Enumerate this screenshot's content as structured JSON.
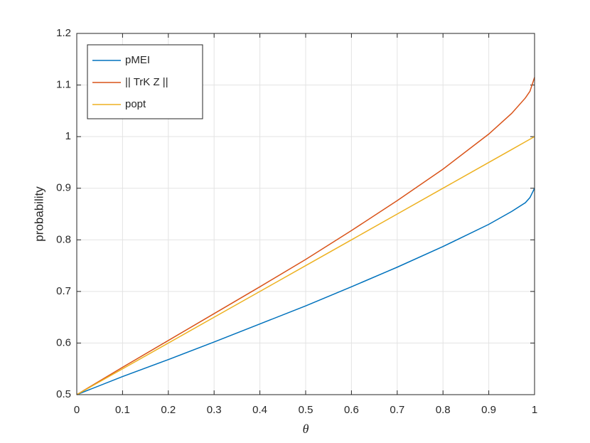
{
  "chart_data": {
    "type": "line",
    "x_label": "θ",
    "y_label": "probability",
    "x": [
      0,
      0.1,
      0.2,
      0.3,
      0.4,
      0.5,
      0.6,
      0.7,
      0.8,
      0.9,
      0.95,
      0.98,
      0.99,
      1
    ],
    "series": [
      {
        "name": "pMEI",
        "color": "#0072BD",
        "values": [
          0.5,
          0.535,
          0.568,
          0.602,
          0.637,
          0.672,
          0.709,
          0.747,
          0.787,
          0.83,
          0.855,
          0.872,
          0.882,
          0.9
        ]
      },
      {
        "name": "|| TrK Z ||",
        "color": "#D95319",
        "values": [
          0.5,
          0.553,
          0.605,
          0.657,
          0.709,
          0.762,
          0.818,
          0.876,
          0.937,
          1.005,
          1.045,
          1.075,
          1.088,
          1.115
        ]
      },
      {
        "name": "popt",
        "color": "#EDB120",
        "values": [
          0.5,
          0.55,
          0.6,
          0.65,
          0.7,
          0.75,
          0.8,
          0.85,
          0.9,
          0.95,
          0.975,
          0.99,
          0.995,
          1
        ]
      }
    ],
    "xlim": [
      0,
      1
    ],
    "xticks": [
      0,
      0.1,
      0.2,
      0.3,
      0.4,
      0.5,
      0.6,
      0.7,
      0.8,
      0.9,
      1
    ],
    "ylim": [
      0.5,
      1.2
    ],
    "yticks": [
      0.5,
      0.6,
      0.7,
      0.8,
      0.9,
      1,
      1.1,
      1.2
    ],
    "grid": true,
    "legend": "upper left"
  }
}
